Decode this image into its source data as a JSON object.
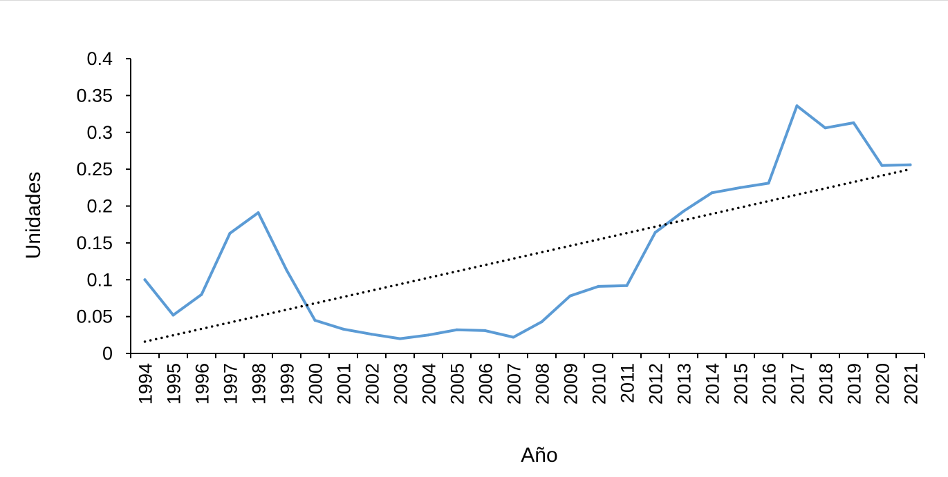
{
  "chart_data": {
    "type": "line",
    "title": "",
    "xlabel": "Año",
    "ylabel": "Unidades",
    "categories": [
      "1994",
      "1995",
      "1996",
      "1997",
      "1998",
      "1999",
      "2000",
      "2001",
      "2002",
      "2003",
      "2004",
      "2005",
      "2006",
      "2007",
      "2008",
      "2009",
      "2010",
      "2011",
      "2012",
      "2013",
      "2014",
      "2015",
      "2016",
      "2017",
      "2018",
      "2019",
      "2020",
      "2021"
    ],
    "y_ticks": [
      "0",
      "0.05",
      "0.1",
      "0.15",
      "0.2",
      "0.25",
      "0.3",
      "0.35",
      "0.4"
    ],
    "ylim": [
      0,
      0.4
    ],
    "grid": false,
    "legend": "none",
    "colors": {
      "series": "#5b9bd5",
      "trend": "#000000",
      "axis": "#000000"
    },
    "series": [
      {
        "name": "Unidades",
        "values": [
          0.1,
          0.052,
          0.08,
          0.163,
          0.191,
          0.113,
          0.045,
          0.033,
          0.026,
          0.02,
          0.025,
          0.032,
          0.031,
          0.022,
          0.043,
          0.078,
          0.091,
          0.092,
          0.164,
          0.193,
          0.218,
          0.225,
          0.231,
          0.336,
          0.306,
          0.313,
          0.255,
          0.256
        ]
      }
    ],
    "trendline": {
      "type": "linear",
      "style": "dotted",
      "start": 0.016,
      "end": 0.25
    }
  }
}
